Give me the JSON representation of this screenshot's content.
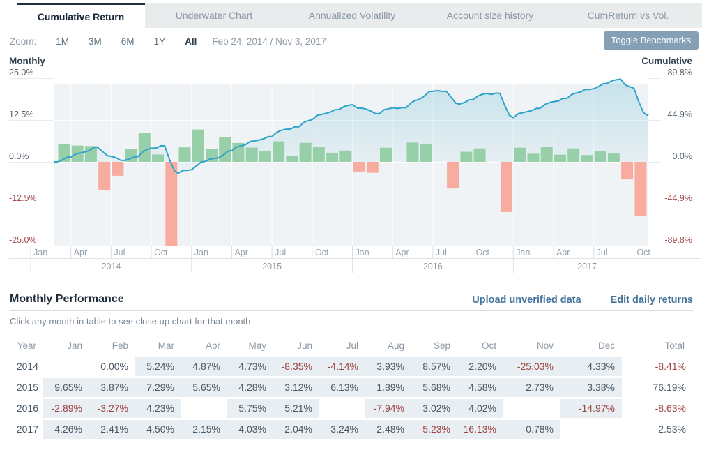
{
  "tabs": [
    {
      "label": "Cumulative Return",
      "active": true
    },
    {
      "label": "Underwater Chart",
      "active": false
    },
    {
      "label": "Annualized Volatility",
      "active": false
    },
    {
      "label": "Account size history",
      "active": false
    },
    {
      "label": "CumReturn vs Vol.",
      "active": false
    }
  ],
  "toolbar": {
    "zoom_label": "Zoom:",
    "ranges": [
      "1M",
      "3M",
      "6M",
      "1Y",
      "All"
    ],
    "active_range": "All",
    "date_range": "Feb 24, 2014 / Nov 3, 2017",
    "toggle_benchmarks_label": "Toggle Benchmarks"
  },
  "chart_data": {
    "type": "combo: monthly-return bars + cumulative-return area line",
    "left_axis": {
      "title": "Monthly",
      "tick_labels": [
        "25.0%",
        "12.5%",
        "0.0%",
        "-12.5%",
        "-25.0%"
      ],
      "max": 25,
      "min": -25
    },
    "right_axis": {
      "title": "Cumulative",
      "tick_labels": [
        "89.8%",
        "44.9%",
        "0.0%",
        "-44.9%",
        "-89.8%"
      ],
      "max": 89.8,
      "min": -89.8
    },
    "x_axis": {
      "quarter_tick_labels": [
        "Jan",
        "Apr",
        "Jul",
        "Oct"
      ],
      "year_labels": [
        "2014",
        "2015",
        "2016",
        "2017"
      ],
      "start_date": "Feb 24, 2014",
      "end_date": "Nov 3, 2017"
    },
    "months": [
      "2014-02",
      "2014-03",
      "2014-04",
      "2014-05",
      "2014-06",
      "2014-07",
      "2014-08",
      "2014-09",
      "2014-10",
      "2014-11",
      "2014-12",
      "2015-01",
      "2015-02",
      "2015-03",
      "2015-04",
      "2015-05",
      "2015-06",
      "2015-07",
      "2015-08",
      "2015-09",
      "2015-10",
      "2015-11",
      "2015-12",
      "2016-01",
      "2016-02",
      "2016-03",
      "2016-04",
      "2016-05",
      "2016-06",
      "2016-07",
      "2016-08",
      "2016-09",
      "2016-10",
      "2016-11",
      "2016-12",
      "2017-01",
      "2017-02",
      "2017-03",
      "2017-04",
      "2017-05",
      "2017-06",
      "2017-07",
      "2017-08",
      "2017-09",
      "2017-10",
      "2017-11"
    ],
    "series": [
      {
        "name": "Monthly return %",
        "type": "bar",
        "values": [
          0.0,
          5.24,
          4.87,
          4.73,
          -8.35,
          -4.14,
          3.93,
          8.57,
          2.2,
          -25.03,
          4.33,
          9.65,
          3.87,
          7.29,
          5.65,
          4.28,
          3.12,
          6.13,
          1.89,
          5.68,
          4.58,
          2.73,
          3.38,
          -2.89,
          -3.27,
          4.23,
          null,
          5.75,
          5.21,
          null,
          -7.94,
          3.02,
          4.02,
          null,
          -14.97,
          4.26,
          2.41,
          4.5,
          2.15,
          4.03,
          2.04,
          3.24,
          2.48,
          -5.23,
          -16.13,
          0.78
        ]
      },
      {
        "name": "Cumulative return %",
        "type": "line",
        "values": [
          0.0,
          5.24,
          10.37,
          15.59,
          5.94,
          1.55,
          5.54,
          14.59,
          17.11,
          -12.21,
          -8.4,
          0.43,
          4.32,
          11.93,
          18.25,
          23.31,
          27.16,
          34.95,
          37.5,
          45.32,
          51.97,
          56.12,
          61.4,
          56.73,
          51.61,
          58.02,
          58.02,
          67.11,
          75.81,
          75.81,
          61.85,
          66.74,
          73.44,
          73.44,
          47.48,
          53.76,
          57.47,
          64.55,
          68.09,
          74.87,
          78.43,
          84.21,
          88.78,
          78.91,
          50.05,
          51.22
        ]
      }
    ],
    "colors": {
      "bar_positive": "#97cfa9",
      "bar_negative": "#f8aca0",
      "line": "#2ea3c9",
      "plot_background": "#f0f3f5",
      "negative_label": "#a14e4e",
      "positive_label": "#55616c"
    }
  },
  "performance": {
    "title": "Monthly Performance",
    "links": [
      {
        "label": "Upload unverified data"
      },
      {
        "label": "Edit daily returns"
      }
    ],
    "hint": "Click any month in table to see close up chart for that month",
    "table": {
      "headers": [
        "Year",
        "Jan",
        "Feb",
        "Mar",
        "Apr",
        "May",
        "Jun",
        "Jul",
        "Aug",
        "Sep",
        "Oct",
        "Nov",
        "Dec",
        "Total"
      ],
      "rows": [
        {
          "year": "2014",
          "values": [
            "",
            "0.00%",
            "5.24%",
            "4.87%",
            "4.73%",
            "-8.35%",
            "-4.14%",
            "3.93%",
            "8.57%",
            "2.20%",
            "-25.03%",
            "4.33%"
          ],
          "shaded": [
            false,
            false,
            true,
            true,
            true,
            true,
            true,
            true,
            true,
            true,
            true,
            true
          ],
          "total": "-8.41%"
        },
        {
          "year": "2015",
          "values": [
            "9.65%",
            "3.87%",
            "7.29%",
            "5.65%",
            "4.28%",
            "3.12%",
            "6.13%",
            "1.89%",
            "5.68%",
            "4.58%",
            "2.73%",
            "3.38%"
          ],
          "shaded": [
            true,
            true,
            true,
            true,
            true,
            true,
            true,
            true,
            true,
            true,
            true,
            true
          ],
          "total": "76.19%"
        },
        {
          "year": "2016",
          "values": [
            "-2.89%",
            "-3.27%",
            "4.23%",
            "",
            "5.75%",
            "5.21%",
            "",
            "-7.94%",
            "3.02%",
            "4.02%",
            "",
            "-14.97%"
          ],
          "shaded": [
            true,
            true,
            true,
            false,
            true,
            true,
            false,
            true,
            true,
            true,
            false,
            true
          ],
          "total": "-8.63%"
        },
        {
          "year": "2017",
          "values": [
            "4.26%",
            "2.41%",
            "4.50%",
            "2.15%",
            "4.03%",
            "2.04%",
            "3.24%",
            "2.48%",
            "-5.23%",
            "-16.13%",
            "0.78%",
            ""
          ],
          "shaded": [
            true,
            true,
            true,
            true,
            true,
            true,
            true,
            true,
            true,
            true,
            true,
            false
          ],
          "total": "2.53%"
        }
      ]
    }
  }
}
